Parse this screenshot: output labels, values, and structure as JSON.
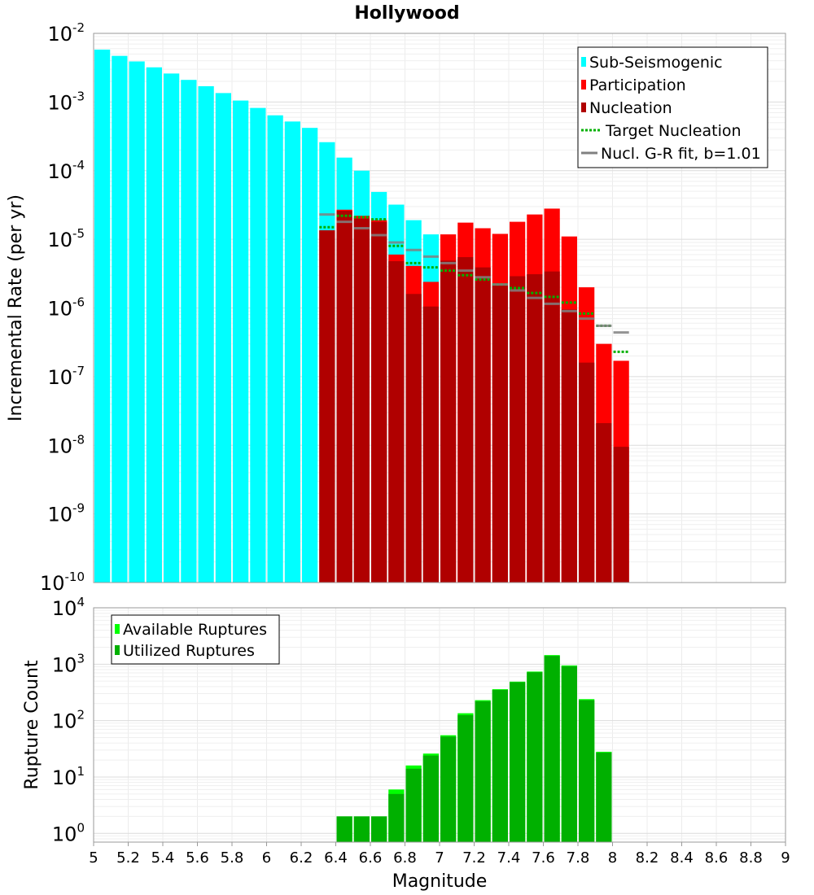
{
  "title": "Hollywood",
  "colors": {
    "sub_seismogenic": "#00ffff",
    "participation": "#ff0000",
    "nucleation": "#b00000",
    "target_nucleation": "#00b000",
    "gr_fit": "#808080",
    "available": "#00ff00",
    "utilized": "#00b000"
  },
  "x_axis": {
    "label": "Magnitude",
    "range": [
      5,
      9
    ],
    "ticks": [
      "5",
      "5.2",
      "5.4",
      "5.6",
      "5.8",
      "6",
      "6.2",
      "6.4",
      "6.6",
      "6.8",
      "7",
      "7.2",
      "7.4",
      "7.6",
      "7.8",
      "8",
      "8.2",
      "8.4",
      "8.6",
      "8.8",
      "9"
    ]
  },
  "chart_data": [
    {
      "type": "bar",
      "title": "Hollywood",
      "xlabel": "Magnitude",
      "ylabel": "Incremental Rate (per yr)",
      "yscale": "log",
      "ylim": [
        1e-10,
        0.01
      ],
      "ytick_exponents": [
        "-2",
        "-3",
        "-4",
        "-5",
        "-6",
        "-7",
        "-8",
        "-9",
        "-10"
      ],
      "xlim": [
        5,
        9
      ],
      "grid": true,
      "legend_position": "top-right",
      "legend": [
        "Sub-Seismogenic",
        "Participation",
        "Nucleation",
        "Target Nucleation",
        "Nucl. G-R fit, b=1.01"
      ],
      "x": [
        5.05,
        5.15,
        5.25,
        5.35,
        5.45,
        5.55,
        5.65,
        5.75,
        5.85,
        5.95,
        6.05,
        6.15,
        6.25,
        6.35,
        6.45,
        6.55,
        6.65,
        6.75,
        6.85,
        6.95,
        7.05,
        7.15,
        7.25,
        7.35,
        7.45,
        7.55,
        7.65,
        7.75,
        7.85,
        7.95,
        8.05
      ],
      "series": [
        {
          "name": "Sub-Seismogenic",
          "style": "bar",
          "values": [
            0.0058,
            0.0047,
            0.0039,
            0.0032,
            0.0026,
            0.0021,
            0.0017,
            0.00135,
            0.00105,
            0.00082,
            0.00064,
            0.00052,
            0.00042,
            0.00026,
            0.000155,
            0.0001,
            4.9e-05,
            3.2e-05,
            1.9e-05,
            1.18e-05,
            null,
            null,
            null,
            null,
            null,
            null,
            null,
            null,
            null,
            null,
            null
          ]
        },
        {
          "name": "Participation",
          "style": "bar",
          "values": [
            null,
            null,
            null,
            null,
            null,
            null,
            null,
            null,
            null,
            null,
            null,
            null,
            null,
            1.35e-05,
            2.7e-05,
            2.2e-05,
            1.9e-05,
            6e-06,
            4.1e-06,
            2.4e-06,
            1.18e-05,
            1.75e-05,
            1.45e-05,
            1.2e-05,
            1.8e-05,
            2.3e-05,
            2.8e-05,
            1.1e-05,
            2e-06,
            3e-07,
            1.7e-07
          ]
        },
        {
          "name": "Nucleation",
          "style": "bar",
          "values": [
            null,
            null,
            null,
            null,
            null,
            null,
            null,
            null,
            null,
            null,
            null,
            null,
            null,
            1.35e-05,
            2.6e-05,
            2e-05,
            1.8e-05,
            4.8e-06,
            1.6e-06,
            1.05e-06,
            4.9e-06,
            5.5e-06,
            3.9e-06,
            2.2e-06,
            2.9e-06,
            3.1e-06,
            3.4e-06,
            9.5e-07,
            1.6e-07,
            2.1e-08,
            9.5e-09
          ]
        },
        {
          "name": "Target Nucleation",
          "style": "dotted-step",
          "values": [
            null,
            null,
            null,
            null,
            null,
            null,
            null,
            null,
            null,
            null,
            null,
            null,
            null,
            1.5e-05,
            2.2e-05,
            2.1e-05,
            1.95e-05,
            8e-06,
            4.5e-06,
            3.9e-06,
            3.5e-06,
            3e-06,
            2.6e-06,
            2.2e-06,
            1.95e-06,
            1.65e-06,
            1.45e-06,
            1.2e-06,
            8.3e-07,
            5.5e-07,
            2.3e-07
          ]
        },
        {
          "name": "Nucl. G-R fit, b=1.01",
          "style": "solid-step",
          "values": [
            null,
            null,
            null,
            null,
            null,
            null,
            null,
            null,
            null,
            null,
            null,
            null,
            null,
            2.3e-05,
            1.8e-05,
            1.45e-05,
            1.15e-05,
            9e-06,
            7e-06,
            5.6e-06,
            4.5e-06,
            3.5e-06,
            2.8e-06,
            2.2e-06,
            1.8e-06,
            1.4e-06,
            1.15e-06,
            9e-07,
            7e-07,
            5.5e-07,
            4.4e-07
          ]
        }
      ]
    },
    {
      "type": "bar",
      "xlabel": "Magnitude",
      "ylabel": "Rupture Count",
      "yscale": "log",
      "ylim": [
        0.7,
        10000
      ],
      "ytick_exponents": [
        "4",
        "3",
        "2",
        "1",
        "0"
      ],
      "xlim": [
        5,
        9
      ],
      "grid": true,
      "legend_position": "top-left",
      "legend": [
        "Available Ruptures",
        "Utilized Ruptures"
      ],
      "x": [
        6.45,
        6.55,
        6.65,
        6.75,
        6.85,
        6.95,
        7.05,
        7.15,
        7.25,
        7.35,
        7.45,
        7.55,
        7.65,
        7.75,
        7.85,
        7.95
      ],
      "series": [
        {
          "name": "Available Ruptures",
          "values": [
            2,
            2,
            2,
            6,
            16,
            26,
            55,
            135,
            230,
            360,
            490,
            740,
            1450,
            950,
            240,
            28
          ]
        },
        {
          "name": "Utilized Ruptures",
          "values": [
            2,
            2,
            2,
            5,
            14,
            24,
            52,
            125,
            220,
            350,
            480,
            720,
            1400,
            920,
            230,
            27
          ]
        }
      ]
    }
  ]
}
